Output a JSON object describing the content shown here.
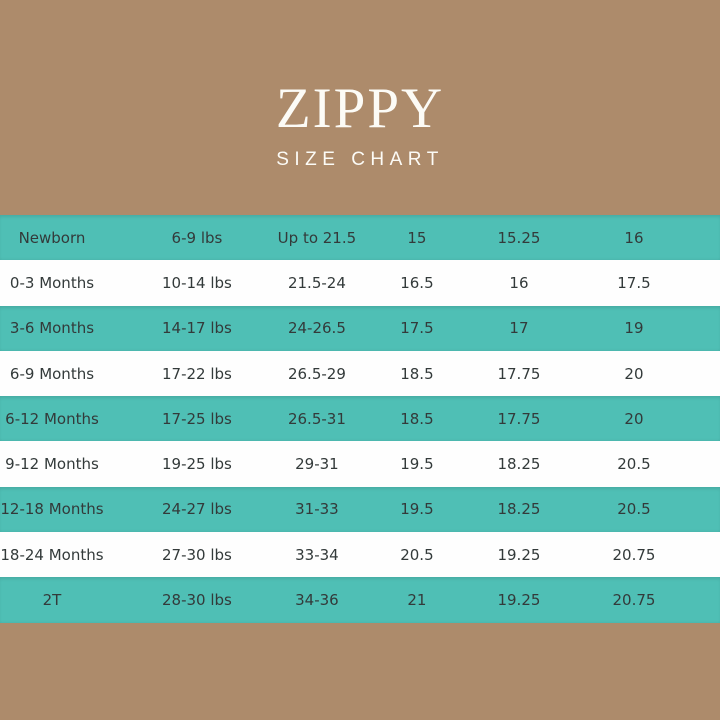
{
  "header": {
    "brand": "ZIPPY",
    "subtitle": "SIZE CHART"
  },
  "chart_data": {
    "type": "table",
    "title": "ZIPPY SIZE CHART",
    "rows": [
      [
        "Newborn",
        "6-9 lbs",
        "Up to 21.5",
        "15",
        "15.25",
        "16"
      ],
      [
        "0-3 Months",
        "10-14 lbs",
        "21.5-24",
        "16.5",
        "16",
        "17.5"
      ],
      [
        "3-6 Months",
        "14-17 lbs",
        "24-26.5",
        "17.5",
        "17",
        "19"
      ],
      [
        "6-9 Months",
        "17-22 lbs",
        "26.5-29",
        "18.5",
        "17.75",
        "20"
      ],
      [
        "6-12 Months",
        "17-25 lbs",
        "26.5-31",
        "18.5",
        "17.75",
        "20"
      ],
      [
        "9-12 Months",
        "19-25 lbs",
        "29-31",
        "19.5",
        "18.25",
        "20.5"
      ],
      [
        "12-18 Months",
        "24-27 lbs",
        "31-33",
        "19.5",
        "18.25",
        "20.5"
      ],
      [
        "18-24 Months",
        "27-30 lbs",
        "33-34",
        "20.5",
        "19.25",
        "20.75"
      ],
      [
        "2T",
        "28-30 lbs",
        "34-36",
        "21",
        "19.25",
        "20.75"
      ]
    ],
    "layout_hints": {
      "row_style": "alternating teal and white, starting teal",
      "column_headers": "none visible",
      "grid": false
    }
  },
  "colors": {
    "background": "#ad8b6b",
    "row_teal": "#4fbfb5",
    "row_white": "#fefefe",
    "text": "#333a3a",
    "title_text": "#fcfbf6"
  }
}
